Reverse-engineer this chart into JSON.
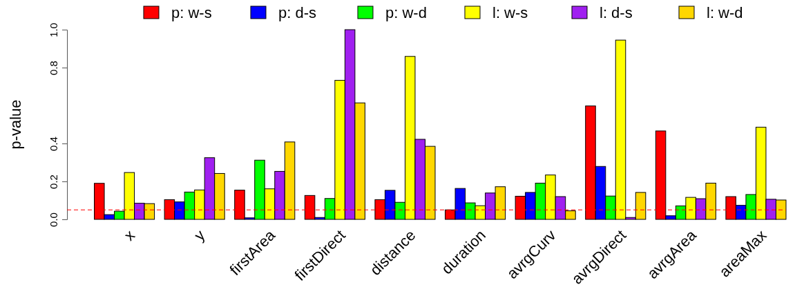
{
  "chart_data": {
    "type": "bar",
    "ylabel": "p-value",
    "categories": [
      "x",
      "y",
      "firstArea",
      "firstDirect",
      "distance",
      "duration",
      "avrgCurv",
      "avrgDirect",
      "avrgArea",
      "areaMax"
    ],
    "series": [
      {
        "name": "p: w-s",
        "color": "#ff0000",
        "values": [
          0.19,
          0.104,
          0.154,
          0.126,
          0.104,
          0.05,
          0.122,
          0.598,
          0.466,
          0.12
        ]
      },
      {
        "name": "p: d-s",
        "color": "#0000ff",
        "values": [
          0.025,
          0.092,
          0.008,
          0.01,
          0.153,
          0.163,
          0.142,
          0.279,
          0.019,
          0.074
        ]
      },
      {
        "name": "p: w-d",
        "color": "#00ff00",
        "values": [
          0.043,
          0.144,
          0.312,
          0.11,
          0.09,
          0.087,
          0.191,
          0.123,
          0.071,
          0.131
        ]
      },
      {
        "name": "l: w-s",
        "color": "#ffff00",
        "values": [
          0.247,
          0.155,
          0.161,
          0.733,
          0.859,
          0.072,
          0.234,
          0.945,
          0.116,
          0.486
        ]
      },
      {
        "name": "l: d-s",
        "color": "#a020f0",
        "values": [
          0.085,
          0.325,
          0.253,
          1.0,
          0.422,
          0.139,
          0.12,
          0.01,
          0.109,
          0.106
        ]
      },
      {
        "name": "l: w-d",
        "color": "#ffd700",
        "values": [
          0.083,
          0.242,
          0.408,
          0.614,
          0.385,
          0.172,
          0.045,
          0.142,
          0.191,
          0.102
        ]
      }
    ],
    "ylim": [
      0,
      1
    ],
    "yticks": [
      {
        "value": 0,
        "label": "0.0"
      },
      {
        "value": 0.2,
        "label": "0.2"
      },
      {
        "value": 0.4,
        "label": "0.4"
      },
      {
        "value": 0.8,
        "label": "0.8"
      },
      {
        "value": 1,
        "label": "1.0"
      }
    ],
    "ref_lines": [
      {
        "axis": "y",
        "value": 0.05,
        "color": "#ff0000",
        "line_style": "dashed"
      }
    ],
    "legend": "top",
    "grid": false
  }
}
